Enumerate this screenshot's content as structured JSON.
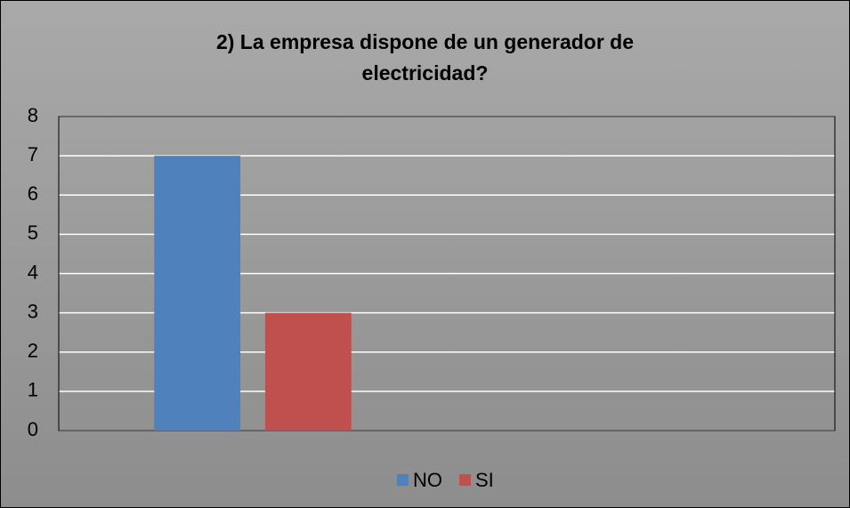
{
  "chart_data": {
    "type": "bar",
    "title": "2) La empresa dispone de un generador de electricidad?",
    "categories": [
      null,
      null
    ],
    "series": [
      {
        "name": "NO",
        "color": "#4f81bd",
        "values": [
          7,
          null
        ]
      },
      {
        "name": "SI",
        "color": "#c0504d",
        "values": [
          3,
          null
        ]
      }
    ],
    "ylim": [
      0,
      8
    ],
    "yticks": [
      0,
      1,
      2,
      3,
      4,
      5,
      6,
      7,
      8
    ],
    "grid": true,
    "legend": "bottom"
  }
}
